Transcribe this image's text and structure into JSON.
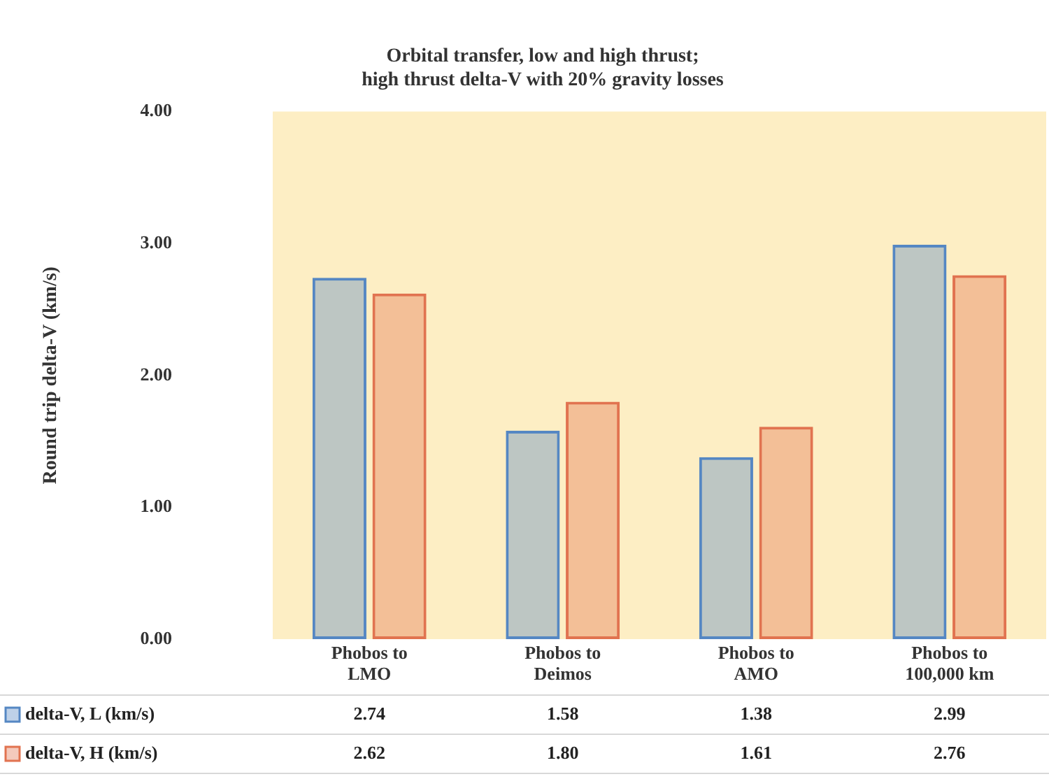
{
  "chart_data": {
    "type": "bar",
    "title": [
      "Orbital transfer, low and high thrust;",
      "high thrust delta-V with 20% gravity losses"
    ],
    "ylabel": "Round trip delta-V (km/s)",
    "categories": [
      "Phobos to LMO",
      "Phobos to Deimos",
      "Phobos to AMO",
      "Phobos to 100,000 km"
    ],
    "series": [
      {
        "name": "delta-V, L (km/s)",
        "color": "#5587c3",
        "values": [
          2.74,
          1.58,
          1.38,
          2.99
        ],
        "value_labels": [
          "2.74",
          "1.58",
          "1.38",
          "2.99"
        ]
      },
      {
        "name": "delta-V, H (km/s)",
        "color": "#e17350",
        "values": [
          2.62,
          1.8,
          1.61,
          2.76
        ],
        "value_labels": [
          "2.62",
          "1.80",
          "1.61",
          "2.76"
        ]
      }
    ],
    "ylim": [
      0,
      4
    ],
    "yticks": [
      {
        "value": 0,
        "label": "0.00"
      },
      {
        "value": 1,
        "label": "1.00"
      },
      {
        "value": 2,
        "label": "2.00"
      },
      {
        "value": 3,
        "label": "3.00"
      },
      {
        "value": 4,
        "label": "4.00"
      }
    ],
    "legend": "bottom",
    "grid": false
  }
}
